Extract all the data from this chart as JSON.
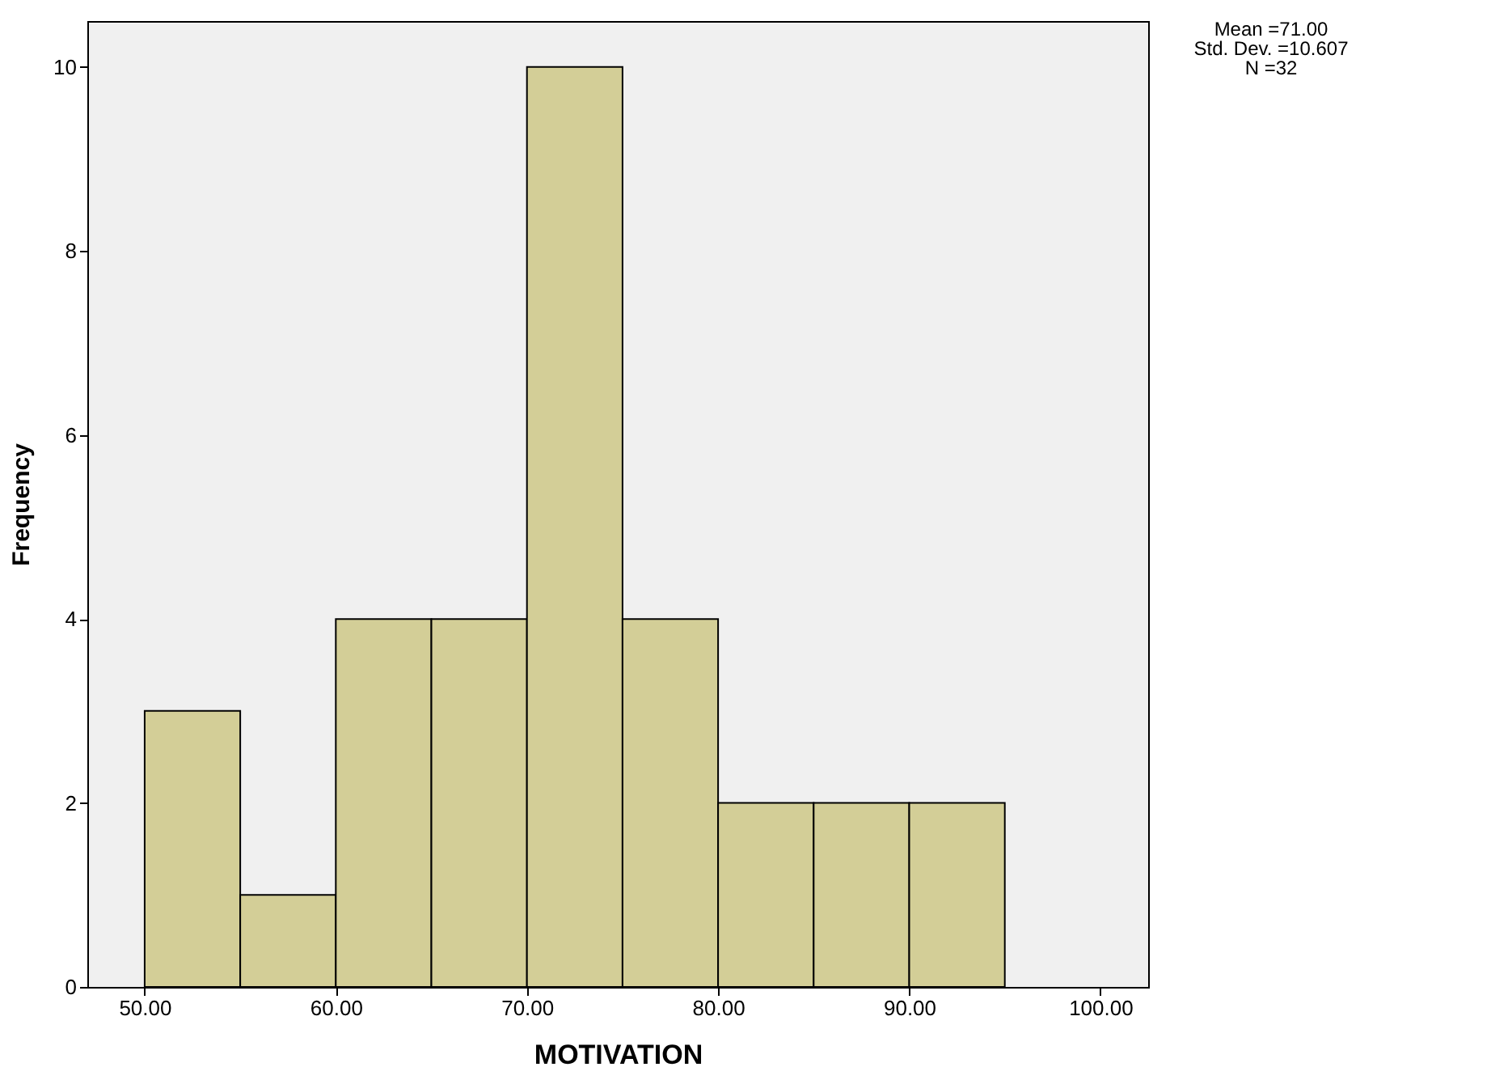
{
  "chart_data": {
    "type": "histogram",
    "xlabel": "MOTIVATION",
    "ylabel": "Frequency",
    "bins": [
      50,
      55,
      60,
      65,
      70,
      75,
      80,
      85,
      90,
      95
    ],
    "values": [
      3,
      1,
      4,
      4,
      10,
      4,
      2,
      2,
      2
    ],
    "color": "#d3ce97",
    "xlim": [
      47,
      102.5
    ],
    "xticks": [
      {
        "value": 50,
        "label": "50.00"
      },
      {
        "value": 60,
        "label": "60.00"
      },
      {
        "value": 70,
        "label": "70.00"
      },
      {
        "value": 80,
        "label": "80.00"
      },
      {
        "value": 90,
        "label": "90.00"
      },
      {
        "value": 100,
        "label": "100.00"
      }
    ],
    "ylim": [
      0,
      10.5
    ],
    "yticks": [
      0,
      2,
      4,
      6,
      8,
      10
    ],
    "grid": false,
    "annotations": [
      "Mean =71.00",
      "Std. Dev. =10.607",
      "N =32"
    ]
  }
}
